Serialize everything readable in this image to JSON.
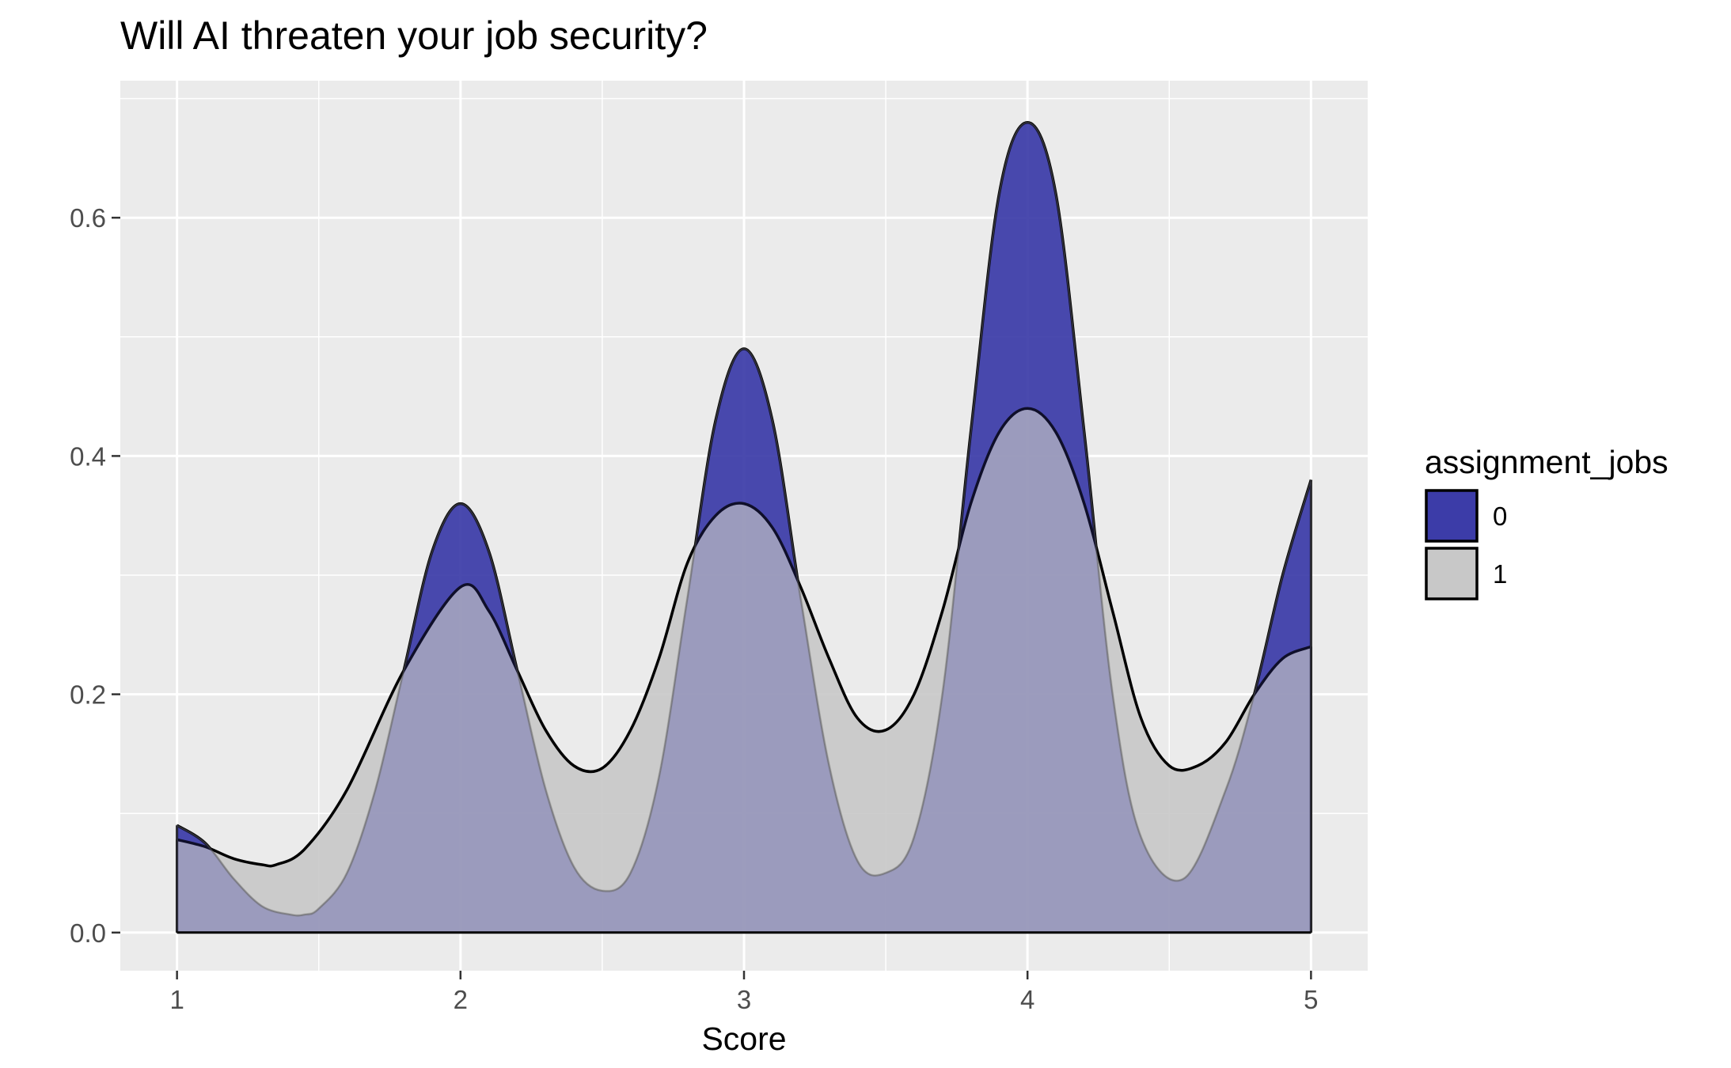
{
  "chart_data": {
    "type": "area",
    "subtype": "density",
    "title": "Will AI threaten your job security?",
    "xlabel": "Score",
    "ylabel": "",
    "xlim": [
      0.8,
      5.2
    ],
    "ylim": [
      -0.032,
      0.715
    ],
    "x_ticks": [
      1,
      2,
      3,
      4,
      5
    ],
    "x_tick_labels": [
      "1",
      "2",
      "3",
      "4",
      "5"
    ],
    "y_ticks": [
      0.0,
      0.2,
      0.4,
      0.6
    ],
    "y_tick_labels": [
      "0.0",
      "0.2",
      "0.4",
      "0.6"
    ],
    "grid": true,
    "legend": {
      "title": "assignment_jobs",
      "position": "right",
      "entries": [
        {
          "label": "0",
          "color": "#3c3ca8"
        },
        {
          "label": "1",
          "color": "#c8c8c8"
        }
      ]
    },
    "series": [
      {
        "name": "0",
        "color": "#3c3ca8",
        "x": [
          1.0,
          1.1,
          1.2,
          1.3,
          1.4,
          1.45,
          1.5,
          1.6,
          1.7,
          1.8,
          1.9,
          2.0,
          2.1,
          2.2,
          2.3,
          2.4,
          2.5,
          2.6,
          2.7,
          2.8,
          2.9,
          3.0,
          3.1,
          3.2,
          3.3,
          3.4,
          3.5,
          3.6,
          3.7,
          3.8,
          3.9,
          4.0,
          4.1,
          4.2,
          4.3,
          4.4,
          4.55,
          4.7,
          4.8,
          4.9,
          5.0
        ],
        "y": [
          0.09,
          0.075,
          0.045,
          0.022,
          0.015,
          0.015,
          0.02,
          0.05,
          0.12,
          0.22,
          0.32,
          0.36,
          0.32,
          0.22,
          0.12,
          0.055,
          0.035,
          0.05,
          0.13,
          0.28,
          0.43,
          0.49,
          0.43,
          0.28,
          0.14,
          0.06,
          0.05,
          0.08,
          0.2,
          0.42,
          0.62,
          0.68,
          0.62,
          0.42,
          0.2,
          0.08,
          0.045,
          0.12,
          0.2,
          0.3,
          0.38
        ]
      },
      {
        "name": "1",
        "color": "#c8c8c8",
        "x": [
          1.0,
          1.1,
          1.2,
          1.3,
          1.35,
          1.45,
          1.6,
          1.8,
          2.0,
          2.1,
          2.2,
          2.3,
          2.4,
          2.5,
          2.6,
          2.7,
          2.8,
          2.9,
          3.0,
          3.1,
          3.2,
          3.3,
          3.4,
          3.5,
          3.6,
          3.7,
          3.8,
          3.9,
          4.0,
          4.1,
          4.2,
          4.3,
          4.4,
          4.5,
          4.6,
          4.7,
          4.8,
          4.9,
          5.0
        ],
        "y": [
          0.078,
          0.072,
          0.062,
          0.057,
          0.057,
          0.07,
          0.12,
          0.22,
          0.29,
          0.27,
          0.22,
          0.17,
          0.14,
          0.138,
          0.17,
          0.23,
          0.31,
          0.35,
          0.36,
          0.34,
          0.29,
          0.23,
          0.18,
          0.17,
          0.2,
          0.27,
          0.36,
          0.42,
          0.44,
          0.42,
          0.36,
          0.27,
          0.18,
          0.14,
          0.14,
          0.16,
          0.2,
          0.23,
          0.24
        ]
      }
    ]
  }
}
